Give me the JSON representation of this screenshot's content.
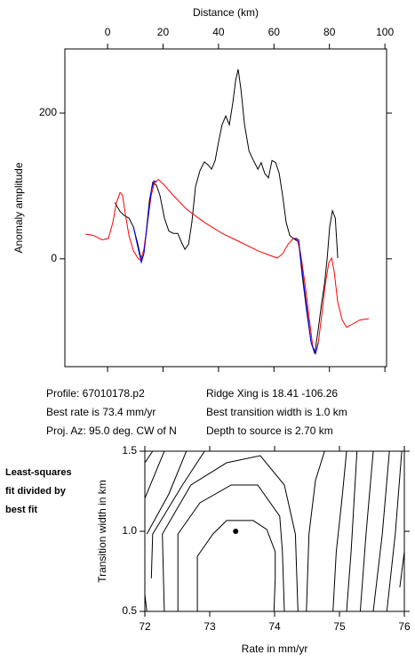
{
  "chart_data": [
    {
      "type": "line",
      "x_label": "Distance (km)",
      "y_label": "Anomaly amplitude",
      "xlim": [
        -15.4,
        100.6
      ],
      "xticks": [
        0,
        20,
        40,
        60,
        80,
        100
      ],
      "ylim": [
        -148,
        288
      ],
      "yticks": [
        0,
        200
      ],
      "series": [
        {
          "color": "#000000",
          "x": [
            2.6,
            4.5,
            6.1,
            7.7,
            9.3,
            10.9,
            12.2,
            13.1,
            14.1,
            15.1,
            16.3,
            17.6,
            18.9,
            20.5,
            22.1,
            23.7,
            25.3,
            26.6,
            27.9,
            29.2,
            30.4,
            31.7,
            33.3,
            34.9,
            36.2,
            37.5,
            38.8,
            40.1,
            41.3,
            42.6,
            43.9,
            45.2,
            46.2,
            47.1,
            48.1,
            49.4,
            51.0,
            52.6,
            54.2,
            55.4,
            56.7,
            58.0,
            59.3,
            60.6,
            61.9,
            63.1,
            64.4,
            65.7,
            67.0,
            68.9,
            70.2,
            71.8,
            73.4,
            74.7,
            76.0,
            77.2,
            78.2,
            79.2,
            80.1,
            81.1,
            82.1,
            83.0
          ],
          "values": [
            77,
            65,
            59,
            56,
            44,
            20,
            -2,
            7,
            44,
            80,
            105,
            101,
            87,
            56,
            38,
            35,
            35,
            23,
            13,
            20,
            50,
            99,
            121,
            133,
            129,
            123,
            135,
            162,
            184,
            196,
            184,
            215,
            245,
            260,
            232,
            184,
            148,
            135,
            123,
            132,
            117,
            111,
            135,
            132,
            117,
            87,
            50,
            32,
            28,
            23,
            -23,
            -72,
            -115,
            -130,
            -96,
            -60,
            -35,
            1,
            44,
            66,
            56,
            1
          ]
        },
        {
          "color": "#ff0000",
          "x": [
            -8.0,
            -5.1,
            -1.9,
            0.3,
            1.9,
            3.2,
            4.5,
            5.4,
            6.4,
            7.7,
            9.3,
            10.9,
            11.9,
            13.1,
            14.4,
            15.7,
            17.0,
            18.3,
            20.5,
            23.7,
            28.5,
            34.9,
            41.3,
            47.8,
            54.2,
            59.0,
            61.2,
            63.1,
            65.1,
            67.0,
            68.3,
            69.6,
            71.2,
            72.8,
            74.0,
            75.0,
            76.0,
            77.2,
            78.5,
            79.8,
            80.8,
            81.7,
            83.0,
            84.6,
            86.2,
            88.1,
            91.0,
            94.2
          ],
          "values": [
            34,
            32,
            26,
            28,
            50,
            77,
            91,
            87,
            62,
            32,
            11,
            1,
            -2,
            13,
            50,
            87,
            105,
            109,
            101,
            87,
            68,
            50,
            35,
            23,
            11,
            4,
            1,
            7,
            20,
            28,
            28,
            7,
            -35,
            -84,
            -121,
            -130,
            -115,
            -78,
            -35,
            -5,
            1,
            -17,
            -60,
            -84,
            -94,
            -90,
            -84,
            -82
          ]
        },
        {
          "color": "#0000ff",
          "x": [
            9.3,
            10.9,
            12.2,
            13.1,
            14.4,
            15.7,
            16.7,
            17.6,
            42.0,
            67.0,
            68.9,
            70.2,
            71.8,
            73.4,
            75.0,
            76.0
          ],
          "values": [
            44,
            16,
            -5,
            7,
            50,
            93,
            107,
            105,
            null,
            28,
            26,
            -17,
            -66,
            -115,
            -130,
            -115
          ]
        }
      ],
      "annotations": [
        "Profile: 67010178.p2",
        "Best rate is 73.4 mm/yr",
        "Proj. Az: 95.0 deg. CW of N",
        "Ridge Xing is 18.41 -106.26",
        "Best transition width is 1.0 km",
        "Depth to source is   2.70 km"
      ]
    },
    {
      "type": "contour",
      "x_label": "Rate in mm/yr",
      "y_label": "Transition width in km",
      "note_lines": [
        "Least-squares",
        "fit divided by",
        "best fit"
      ],
      "xlim": [
        72,
        76
      ],
      "xticks": [
        72,
        73,
        74,
        75,
        76
      ],
      "ylim": [
        0.5,
        1.5
      ],
      "yticks": [
        {
          "value": 0.5,
          "label": "0.5"
        },
        {
          "value": 1,
          "label": "1.0"
        },
        {
          "value": 1.5,
          "label": "1.5"
        }
      ],
      "series": [
        {
          "color": "#000000",
          "x": [
            72.81,
            72.81,
            73.05,
            73.26,
            73.67,
            73.88,
            74.01,
            74.01,
            73.99
          ],
          "values": [
            0.5,
            0.844,
            0.983,
            1.067,
            1.067,
            1.011,
            0.872,
            0.706,
            0.5
          ]
        },
        {
          "color": "#000000",
          "x": [
            72.51,
            72.51,
            72.85,
            73.33,
            73.74,
            74.08,
            74.12,
            74.15
          ],
          "values": [
            0.5,
            0.983,
            1.178,
            1.289,
            1.289,
            1.094,
            0.872,
            0.5
          ]
        },
        {
          "color": "#000000",
          "x": [
            72.3,
            72.27,
            72.71,
            73.26,
            73.78,
            74.15,
            74.32,
            74.36
          ],
          "values": [
            0.5,
            0.983,
            1.289,
            1.428,
            1.472,
            1.289,
            0.983,
            0.5
          ]
        },
        {
          "color": "#000000",
          "x": [
            72.1,
            72.12,
            72.58,
            72.92
          ],
          "values": [
            0.706,
            0.983,
            1.289,
            1.5
          ]
        },
        {
          "color": "#000000",
          "x": [
            72.03,
            72.37,
            72.64
          ],
          "values": [
            0.983,
            1.233,
            1.5
          ]
        },
        {
          "color": "#000000",
          "x": [
            72,
            72.3
          ],
          "values": [
            1.206,
            1.5
          ]
        },
        {
          "color": "#000000",
          "x": [
            72,
            72.12
          ],
          "values": [
            1.428,
            1.5
          ]
        },
        {
          "color": "#000000",
          "x": [
            72,
            72.03
          ],
          "values": [
            0.606,
            0.5
          ]
        },
        {
          "color": "#000000",
          "x": [
            74.49,
            74.53,
            74.63,
            74.77
          ],
          "values": [
            0.5,
            0.983,
            1.317,
            1.5
          ]
        },
        {
          "color": "#000000",
          "x": [
            74.9,
            74.95,
            75.04,
            75.11
          ],
          "values": [
            0.5,
            0.872,
            1.206,
            1.5
          ]
        },
        {
          "color": "#000000",
          "x": [
            75.11,
            75.18,
            75.27
          ],
          "values": [
            0.5,
            0.872,
            1.5
          ]
        },
        {
          "color": "#000000",
          "x": [
            75.32,
            75.41,
            75.52
          ],
          "values": [
            0.5,
            0.983,
            1.5
          ]
        },
        {
          "color": "#000000",
          "x": [
            75.52,
            75.66,
            75.77
          ],
          "values": [
            0.5,
            0.983,
            1.5
          ]
        },
        {
          "color": "#000000",
          "x": [
            75.73,
            75.86,
            75.96
          ],
          "values": [
            0.5,
            0.983,
            1.5
          ]
        },
        {
          "color": "#000000",
          "x": [
            75.93,
            76
          ],
          "values": [
            0.65,
            0.872
          ]
        }
      ],
      "points": {
        "color": "#000000",
        "x": [
          73.4
        ],
        "values": [
          1.0
        ]
      }
    }
  ]
}
